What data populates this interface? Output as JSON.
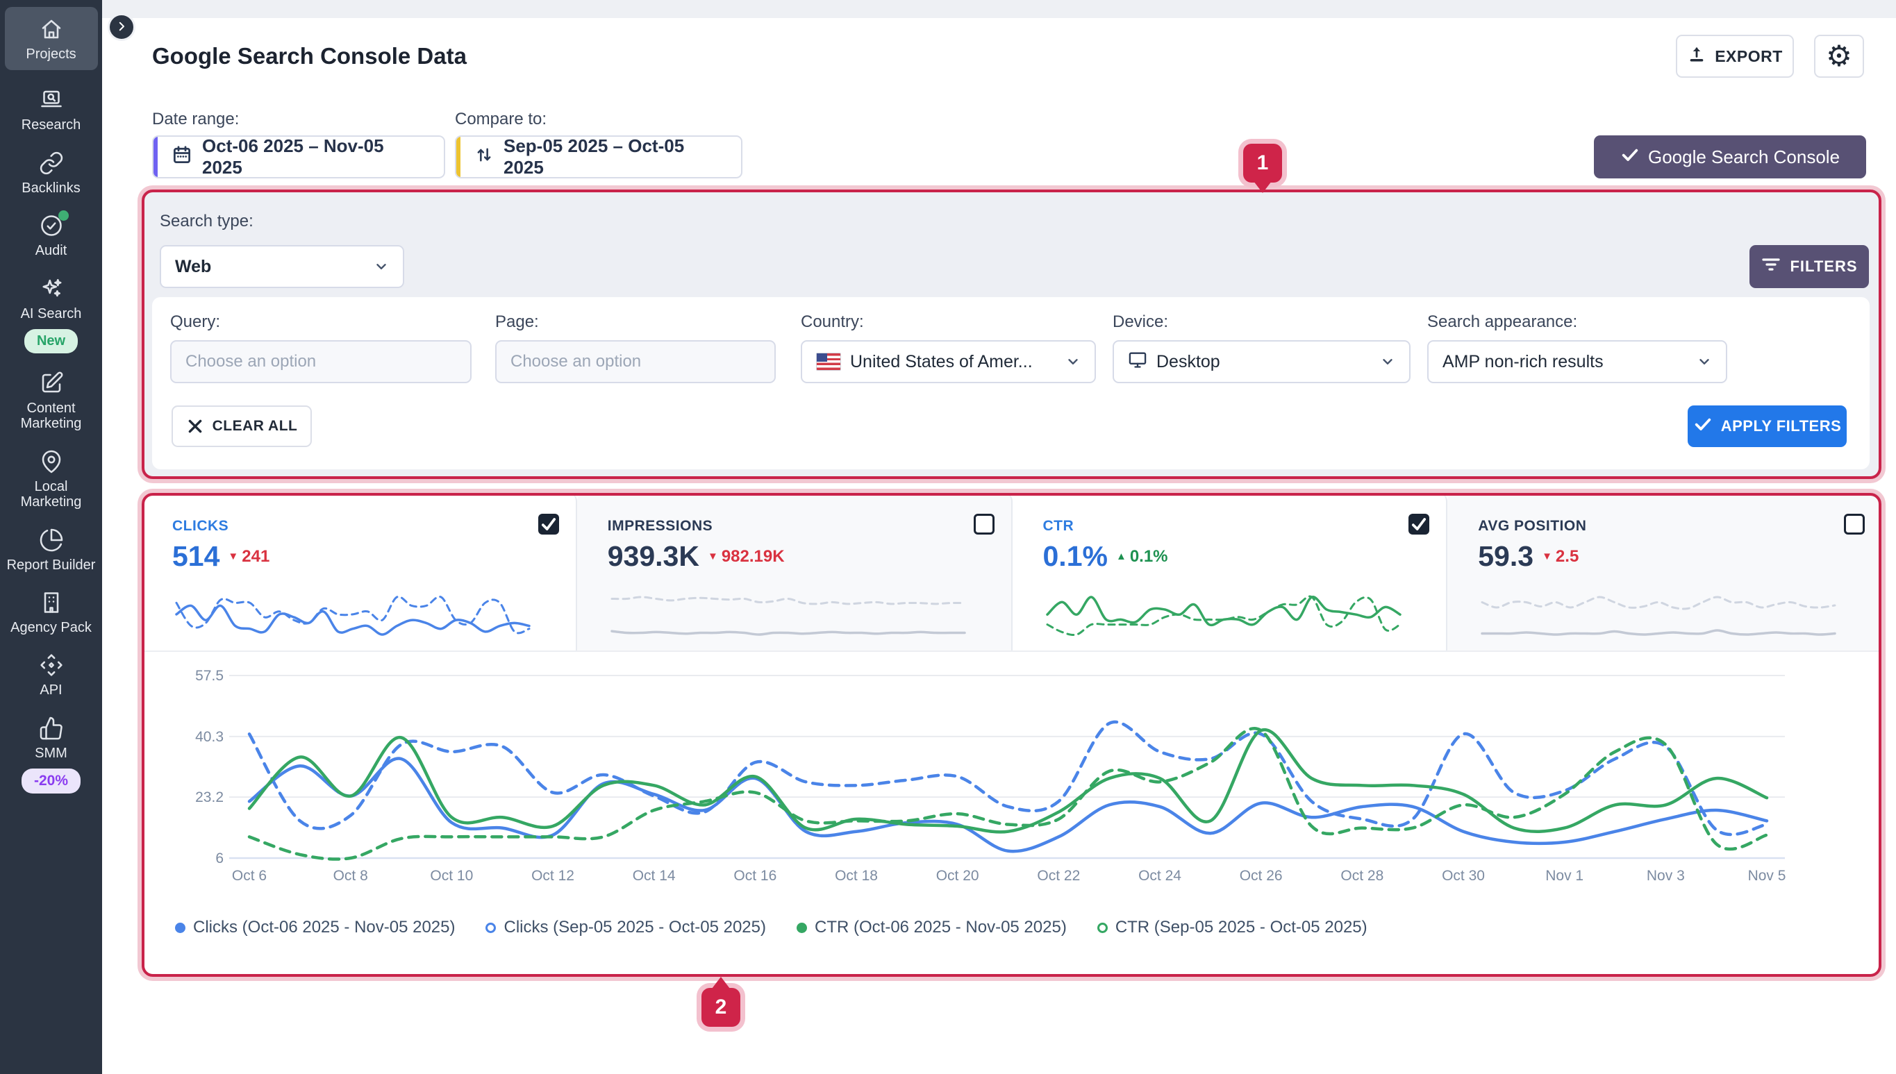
{
  "sidebar": {
    "items": [
      {
        "label": "Projects",
        "icon": "home-icon",
        "active": true
      },
      {
        "label": "Research",
        "icon": "research-icon"
      },
      {
        "label": "Backlinks",
        "icon": "link-icon"
      },
      {
        "label": "Audit",
        "icon": "audit-check-icon",
        "dot": true
      },
      {
        "label": "AI Search",
        "icon": "sparkles-icon",
        "badge": "New"
      },
      {
        "label": "Content Marketing",
        "icon": "edit-icon"
      },
      {
        "label": "Local Marketing",
        "icon": "map-pin-icon"
      },
      {
        "label": "Report Builder",
        "icon": "pie-chart-icon"
      },
      {
        "label": "Agency Pack",
        "icon": "building-icon"
      },
      {
        "label": "API",
        "icon": "api-icon"
      },
      {
        "label": "SMM",
        "icon": "thumbs-up-icon",
        "badge": "-20%"
      }
    ]
  },
  "header": {
    "title": "Google Search Console Data",
    "export_label": "EXPORT"
  },
  "toolbar": {
    "date_range_label": "Date range:",
    "date_range_value": "Oct-06 2025 – Nov-05 2025",
    "compare_label": "Compare to:",
    "compare_value": "Sep-05 2025 – Oct-05 2025",
    "gsc_button": "Google Search Console"
  },
  "filters": {
    "search_type_label": "Search type:",
    "search_type_value": "Web",
    "filters_button": "FILTERS",
    "query_label": "Query:",
    "query_placeholder": "Choose an option",
    "page_label": "Page:",
    "page_placeholder": "Choose an option",
    "country_label": "Country:",
    "country_value": "United States of Amer...",
    "device_label": "Device:",
    "device_value": "Desktop",
    "appearance_label": "Search appearance:",
    "appearance_value": "AMP non-rich results",
    "clear_all": "CLEAR ALL",
    "apply": "APPLY FILTERS"
  },
  "metrics": {
    "cards": [
      {
        "label": "CLICKS",
        "value": "514",
        "delta": "241",
        "delta_dir": "down",
        "checked": true,
        "selected": true,
        "spark": {
          "color": "#4a84e8",
          "current": [
            6,
            7.5,
            5,
            7.5,
            4,
            3.5,
            3,
            6,
            5.5,
            4.5,
            6.5,
            3,
            3.5,
            4,
            2.5,
            4,
            5,
            4.5,
            3.5,
            5,
            4.5,
            3,
            4,
            4.5,
            4
          ],
          "previous": [
            8,
            4,
            4.5,
            8.5,
            8,
            8,
            5.5,
            6.5,
            5,
            4.5,
            7,
            6,
            6,
            6.5,
            5,
            9,
            7.5,
            7.5,
            9,
            5,
            4.5,
            8,
            8,
            3,
            3.5
          ]
        }
      },
      {
        "label": "IMPRESSIONS",
        "value": "939.3K",
        "delta": "982.19K",
        "delta_dir": "down",
        "checked": false,
        "selected": false,
        "spark": {
          "color": "#c3c9d5",
          "color_prev": "#cfd5e0",
          "current": [
            3.2,
            3,
            3,
            3.1,
            3,
            2.9,
            3,
            3,
            3.1,
            3,
            2.8,
            3,
            3,
            2.9,
            3,
            3.1,
            3,
            3,
            2.9,
            3,
            3,
            3.1,
            3,
            3,
            3
          ],
          "previous": [
            7,
            7,
            7.2,
            7,
            6.8,
            7,
            7.1,
            7,
            6.9,
            7,
            6.6,
            6.7,
            7,
            6.5,
            6.4,
            6.6,
            6.4,
            6.5,
            6.6,
            6.4,
            6.5,
            6.5,
            6.4,
            6.5,
            6.5
          ]
        }
      },
      {
        "label": "CTR",
        "value": "0.1%",
        "delta": "0.1%",
        "delta_dir": "up",
        "checked": true,
        "selected": true,
        "spark": {
          "color": "#35a763",
          "current": [
            5,
            7.5,
            5,
            8.5,
            4,
            4,
            3.5,
            6,
            6,
            5,
            7,
            3,
            4,
            4,
            3,
            5.5,
            6.5,
            4,
            8.5,
            6,
            5.5,
            5,
            4.5,
            6.5,
            5
          ],
          "previous": [
            3,
            1.5,
            1,
            3,
            3,
            3,
            3,
            3,
            4.5,
            5,
            4,
            4,
            4,
            4.5,
            4,
            5.5,
            7,
            7,
            8.5,
            3,
            3.5,
            7.5,
            8,
            2,
            3
          ]
        }
      },
      {
        "label": "AVG POSITION",
        "value": "59.3",
        "delta": "2.5",
        "delta_dir": "down",
        "checked": false,
        "selected": false,
        "spark": {
          "color": "#c3c9d5",
          "color_prev": "#cfd5e0",
          "current": [
            4,
            4,
            4,
            4.1,
            4,
            3.9,
            4,
            4,
            4,
            4.2,
            4,
            3.9,
            4,
            4.1,
            4,
            4,
            4.3,
            4,
            3.9,
            4,
            4.1,
            4,
            4,
            3.9,
            4
          ],
          "previous": [
            7,
            6.5,
            7,
            7,
            6.6,
            7,
            6.5,
            7,
            7.5,
            7,
            6.5,
            6.6,
            7,
            6.5,
            6.4,
            7,
            7.5,
            7,
            7,
            6.5,
            6.8,
            7,
            6.6,
            6.5,
            6.7
          ]
        }
      }
    ]
  },
  "annotations": {
    "badge1": "1",
    "badge2": "2"
  },
  "chart_data": {
    "type": "line",
    "title": "Clicks and CTR, current vs previous period",
    "x_labels": [
      "Oct 6",
      "Oct 8",
      "Oct 10",
      "Oct 12",
      "Oct 14",
      "Oct 16",
      "Oct 18",
      "Oct 20",
      "Oct 22",
      "Oct 24",
      "Oct 26",
      "Oct 28",
      "Oct 30",
      "Nov 1",
      "Nov 3",
      "Nov 5"
    ],
    "y_ticks": [
      57.5,
      40.3,
      23.2,
      6
    ],
    "y_range": [
      6,
      57.5
    ],
    "grid": true,
    "legend_position": "bottom",
    "series": [
      {
        "name": "Clicks (Oct-06 2025 - Nov-05 2025)",
        "color": "#4a84e8",
        "dash": false,
        "values": [
          22,
          32,
          23.5,
          34,
          16,
          14.5,
          12.5,
          27,
          24,
          19.5,
          28.5,
          13.5,
          13.5,
          16,
          15.5,
          8,
          12,
          21,
          20.5,
          13,
          21.5,
          17.5,
          20.5,
          20.5,
          13.5,
          10.5,
          10.5,
          13.5,
          17,
          19.5,
          16.5
        ]
      },
      {
        "name": "Clicks (Sep-05 2025 - Oct-05 2025)",
        "color": "#4a84e8",
        "dash": true,
        "values": [
          41,
          16.5,
          18,
          38,
          36,
          37.5,
          24.5,
          29.5,
          23.5,
          19,
          33,
          27.5,
          26.5,
          28,
          29,
          20.5,
          22,
          44,
          36,
          34,
          41,
          22,
          17,
          17,
          41,
          24.5,
          25,
          34,
          37.5,
          14,
          15.5
        ]
      },
      {
        "name": "CTR (Oct-06 2025 - Nov-05 2025)",
        "color": "#35a763",
        "dash": false,
        "values": [
          20,
          34.5,
          23.5,
          40,
          17.5,
          17.5,
          15,
          26.5,
          26.5,
          21,
          29,
          14.5,
          17,
          15.5,
          15,
          13.5,
          19,
          28.5,
          28.5,
          16.5,
          42,
          28.5,
          26.5,
          26.5,
          24,
          14.5,
          14.5,
          21,
          21,
          28.5,
          23
        ]
      },
      {
        "name": "CTR (Sep-05 2025 - Oct-05 2025)",
        "color": "#35a763",
        "dash": true,
        "values": [
          12,
          7,
          6,
          11.5,
          12,
          12,
          12,
          12,
          19.5,
          22,
          24.5,
          16.5,
          16.5,
          16.5,
          18.5,
          15.5,
          17,
          30.5,
          27.5,
          33,
          42,
          15,
          14.5,
          14.5,
          21,
          17.5,
          24,
          36,
          38,
          10,
          12.5
        ]
      }
    ],
    "legend": [
      {
        "label": "Clicks (Oct-06 2025 - Nov-05 2025)",
        "color": "#4a84e8",
        "hollow": false
      },
      {
        "label": "Clicks (Sep-05 2025 - Oct-05 2025)",
        "color": "#4a84e8",
        "hollow": true
      },
      {
        "label": "CTR (Oct-06 2025 - Nov-05 2025)",
        "color": "#35a763",
        "hollow": false
      },
      {
        "label": "CTR (Sep-05 2025 - Oct-05 2025)",
        "color": "#35a763",
        "hollow": true
      }
    ]
  }
}
